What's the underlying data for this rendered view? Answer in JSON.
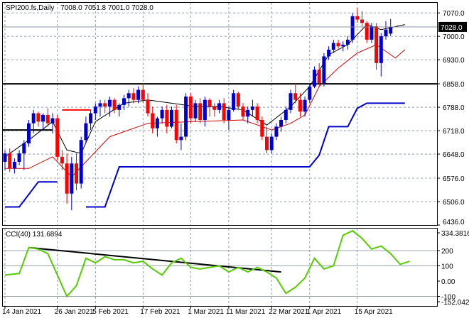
{
  "price_panel": {
    "title": "SPI200.fs,Daily",
    "ohlc": "7008.0 7051.8 7001.0 7028.0",
    "current_label": "7028.0"
  },
  "cci_panel": {
    "title": "CCI(40) 131.6894"
  },
  "chart_data": [
    {
      "type": "candlestick",
      "symbol": "SPI200.fs",
      "timeframe": "Daily",
      "ohlc_header": {
        "open": 7008.0,
        "high": 7051.8,
        "low": 7001.0,
        "close": 7028.0
      },
      "ylim": [
        6436,
        7100
      ],
      "y_tick_labels": [
        "7070.0",
        "7000.0",
        "6930.0",
        "6858.0",
        "6788.0",
        "6718.0",
        "6648.0",
        "6576.0",
        "6506.0",
        "6436.0"
      ],
      "y_ticks": [
        7070,
        7000,
        6930,
        6858,
        6788,
        6718,
        6648,
        6576,
        6506,
        6436
      ],
      "x_tick_labels": [
        "14 Jan 2021",
        "26 Jan 2021",
        "5 Feb 2021",
        "17 Feb 2021",
        "1 Mar 2021",
        "11 Mar 2021",
        "22 Mar 2021",
        "1 Apr 2021",
        "15 Apr 2021"
      ],
      "x_tick_bars": [
        0,
        11,
        19,
        29,
        39,
        47,
        56,
        64,
        74
      ],
      "current_price": 7028.0,
      "horizontal_lines": [
        6858,
        6720
      ],
      "horizontal_line_ranges": [
        [
          0,
          83
        ],
        [
          0,
          10
        ]
      ],
      "red_segment": {
        "value": 6780,
        "from_bar": 12,
        "to_bar": 18
      },
      "colors": {
        "up": "#0000cc",
        "down": "#ff0000",
        "grid": "#778899",
        "ma_fast": "#000000",
        "ma_slow": "#dd0000",
        "trail": "#0000cc"
      },
      "candles": [
        [
          6625,
          6660,
          6600,
          6650
        ],
        [
          6650,
          6665,
          6595,
          6605
        ],
        [
          6605,
          6635,
          6590,
          6625
        ],
        [
          6625,
          6660,
          6615,
          6650
        ],
        [
          6650,
          6690,
          6600,
          6680
        ],
        [
          6680,
          6750,
          6670,
          6740
        ],
        [
          6740,
          6780,
          6710,
          6770
        ],
        [
          6770,
          6775,
          6730,
          6745
        ],
        [
          6745,
          6770,
          6720,
          6765
        ],
        [
          6765,
          6785,
          6730,
          6740
        ],
        [
          6740,
          6770,
          6710,
          6755
        ],
        [
          6755,
          6765,
          6630,
          6640
        ],
        [
          6640,
          6660,
          6600,
          6620
        ],
        [
          6620,
          6650,
          6500,
          6530
        ],
        [
          6530,
          6640,
          6480,
          6620
        ],
        [
          6620,
          6650,
          6540,
          6560
        ],
        [
          6560,
          6700,
          6545,
          6690
        ],
        [
          6690,
          6760,
          6680,
          6740
        ],
        [
          6740,
          6780,
          6720,
          6770
        ],
        [
          6770,
          6800,
          6750,
          6790
        ],
        [
          6790,
          6810,
          6760,
          6800
        ],
        [
          6800,
          6810,
          6770,
          6790
        ],
        [
          6790,
          6820,
          6760,
          6810
        ],
        [
          6810,
          6815,
          6770,
          6780
        ],
        [
          6780,
          6800,
          6760,
          6795
        ],
        [
          6795,
          6825,
          6780,
          6815
        ],
        [
          6815,
          6840,
          6790,
          6830
        ],
        [
          6830,
          6845,
          6800,
          6810
        ],
        [
          6810,
          6850,
          6800,
          6840
        ],
        [
          6840,
          6860,
          6800,
          6810
        ],
        [
          6810,
          6830,
          6760,
          6770
        ],
        [
          6770,
          6790,
          6710,
          6725
        ],
        [
          6725,
          6760,
          6700,
          6755
        ],
        [
          6755,
          6790,
          6740,
          6780
        ],
        [
          6780,
          6795,
          6710,
          6730
        ],
        [
          6730,
          6790,
          6725,
          6780
        ],
        [
          6780,
          6795,
          6680,
          6690
        ],
        [
          6690,
          6740,
          6660,
          6700
        ],
        [
          6700,
          6830,
          6690,
          6820
        ],
        [
          6820,
          6830,
          6740,
          6755
        ],
        [
          6755,
          6810,
          6745,
          6800
        ],
        [
          6800,
          6815,
          6740,
          6750
        ],
        [
          6750,
          6820,
          6730,
          6810
        ],
        [
          6810,
          6815,
          6760,
          6790
        ],
        [
          6790,
          6800,
          6760,
          6780
        ],
        [
          6780,
          6810,
          6770,
          6800
        ],
        [
          6800,
          6815,
          6740,
          6750
        ],
        [
          6750,
          6790,
          6720,
          6780
        ],
        [
          6780,
          6840,
          6775,
          6830
        ],
        [
          6830,
          6835,
          6780,
          6790
        ],
        [
          6790,
          6800,
          6750,
          6760
        ],
        [
          6760,
          6790,
          6740,
          6780
        ],
        [
          6780,
          6810,
          6760,
          6790
        ],
        [
          6790,
          6800,
          6740,
          6750
        ],
        [
          6750,
          6760,
          6690,
          6700
        ],
        [
          6700,
          6730,
          6650,
          6660
        ],
        [
          6660,
          6710,
          6650,
          6700
        ],
        [
          6700,
          6740,
          6690,
          6730
        ],
        [
          6730,
          6760,
          6715,
          6750
        ],
        [
          6750,
          6790,
          6740,
          6780
        ],
        [
          6780,
          6840,
          6770,
          6830
        ],
        [
          6830,
          6860,
          6800,
          6810
        ],
        [
          6810,
          6830,
          6760,
          6775
        ],
        [
          6775,
          6820,
          6760,
          6810
        ],
        [
          6810,
          6860,
          6800,
          6850
        ],
        [
          6850,
          6910,
          6845,
          6900
        ],
        [
          6900,
          6920,
          6850,
          6860
        ],
        [
          6860,
          6950,
          6850,
          6940
        ],
        [
          6940,
          6970,
          6930,
          6960
        ],
        [
          6960,
          6990,
          6950,
          6980
        ],
        [
          6980,
          6990,
          6960,
          6970
        ],
        [
          6970,
          6985,
          6955,
          6975
        ],
        [
          6975,
          7000,
          6960,
          6990
        ],
        [
          6990,
          7070,
          6980,
          7060
        ],
        [
          7060,
          7085,
          7040,
          7050
        ],
        [
          7050,
          7075,
          7030,
          7040
        ],
        [
          7040,
          7045,
          6980,
          6990
        ],
        [
          6990,
          7040,
          6980,
          7030
        ],
        [
          7030,
          7040,
          6900,
          6920
        ],
        [
          6920,
          7010,
          6880,
          7000
        ],
        [
          7000,
          7045,
          6990,
          7020
        ],
        [
          7008,
          7052,
          7001,
          7028
        ]
      ],
      "ma_fast": [
        [
          0,
          6640
        ],
        [
          5,
          6690
        ],
        [
          10,
          6745
        ],
        [
          13,
          6660
        ],
        [
          16,
          6650
        ],
        [
          19,
          6745
        ],
        [
          25,
          6800
        ],
        [
          30,
          6810
        ],
        [
          35,
          6800
        ],
        [
          40,
          6790
        ],
        [
          45,
          6790
        ],
        [
          50,
          6780
        ],
        [
          55,
          6735
        ],
        [
          60,
          6790
        ],
        [
          64,
          6850
        ],
        [
          68,
          6945
        ],
        [
          72,
          6975
        ],
        [
          76,
          7035
        ],
        [
          79,
          7020
        ],
        [
          84,
          7035
        ]
      ],
      "ma_slow": [
        [
          0,
          6605
        ],
        [
          5,
          6605
        ],
        [
          10,
          6640
        ],
        [
          14,
          6580
        ],
        [
          18,
          6640
        ],
        [
          22,
          6700
        ],
        [
          30,
          6740
        ],
        [
          40,
          6745
        ],
        [
          50,
          6750
        ],
        [
          56,
          6720
        ],
        [
          60,
          6740
        ],
        [
          63,
          6765
        ],
        [
          66,
          6850
        ],
        [
          70,
          6905
        ],
        [
          74,
          6950
        ],
        [
          78,
          6975
        ],
        [
          82,
          6935
        ],
        [
          84,
          6960
        ]
      ],
      "trail_stop": [
        [
          0,
          6490
        ],
        [
          3,
          6490
        ],
        [
          7,
          6565
        ],
        [
          11,
          6565
        ],
        [
          11,
          null
        ],
        [
          17,
          6490
        ],
        [
          21,
          6490
        ],
        [
          24,
          6610
        ],
        [
          35,
          6610
        ],
        [
          64,
          6610
        ],
        [
          66,
          6645
        ],
        [
          68,
          6730
        ],
        [
          72,
          6730
        ],
        [
          74,
          6785
        ],
        [
          76,
          6800
        ],
        [
          84,
          6800
        ]
      ]
    },
    {
      "type": "line",
      "indicator": "CCI(40)",
      "current_value": 131.6894,
      "ylim": [
        -152.042,
        334.3816
      ],
      "y_tick_labels": [
        "334.3816",
        "200",
        "100",
        "0.00",
        "-100",
        "-152.042"
      ],
      "y_ticks": [
        334.3816,
        200,
        100,
        0,
        -100,
        -152.042
      ],
      "levels": [
        200,
        100,
        -100
      ],
      "trendline": [
        [
          5,
          220
        ],
        [
          58,
          60
        ]
      ],
      "colors": {
        "line": "#55cc00",
        "trendline": "#000000",
        "levels": "#778899"
      },
      "values": [
        [
          0,
          40
        ],
        [
          3,
          50
        ],
        [
          5,
          220
        ],
        [
          7,
          210
        ],
        [
          9,
          180
        ],
        [
          11,
          40
        ],
        [
          13,
          -100
        ],
        [
          15,
          -30
        ],
        [
          17,
          150
        ],
        [
          19,
          120
        ],
        [
          21,
          160
        ],
        [
          23,
          140
        ],
        [
          25,
          140
        ],
        [
          27,
          120
        ],
        [
          29,
          130
        ],
        [
          31,
          80
        ],
        [
          33,
          40
        ],
        [
          35,
          120
        ],
        [
          37,
          150
        ],
        [
          39,
          90
        ],
        [
          41,
          80
        ],
        [
          43,
          90
        ],
        [
          45,
          100
        ],
        [
          47,
          60
        ],
        [
          49,
          90
        ],
        [
          51,
          60
        ],
        [
          53,
          90
        ],
        [
          55,
          60
        ],
        [
          57,
          20
        ],
        [
          59,
          -80
        ],
        [
          61,
          -40
        ],
        [
          63,
          20
        ],
        [
          65,
          150
        ],
        [
          67,
          80
        ],
        [
          69,
          100
        ],
        [
          71,
          300
        ],
        [
          73,
          330
        ],
        [
          75,
          280
        ],
        [
          77,
          210
        ],
        [
          79,
          230
        ],
        [
          81,
          180
        ],
        [
          83,
          110
        ],
        [
          85,
          130
        ]
      ]
    }
  ]
}
